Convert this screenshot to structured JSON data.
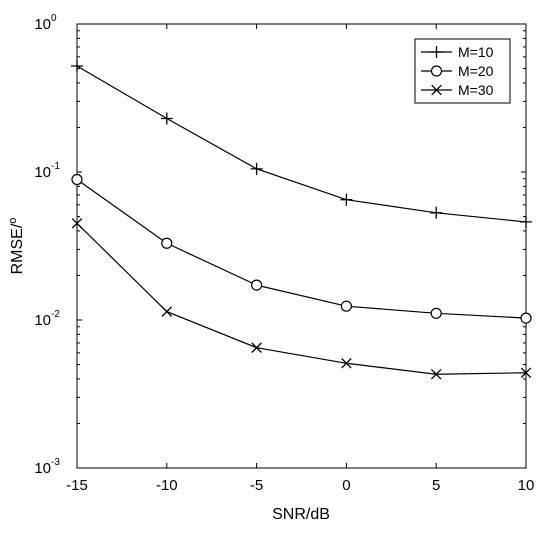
{
  "chart_data": {
    "type": "line",
    "xlabel": "SNR/dB",
    "ylabel": "RMSE/°",
    "ylabel_base": "RMSE/",
    "ylabel_superscript": "o",
    "x_scale": "linear",
    "y_scale": "log",
    "xlim": [
      -15,
      10
    ],
    "ylim": [
      0.001,
      1
    ],
    "x_ticks": [
      -15,
      -10,
      -5,
      0,
      5,
      10
    ],
    "x_tick_labels": [
      "-15",
      "-10",
      "-5",
      "0",
      "5",
      "10"
    ],
    "y_ticks": [
      {
        "value": 0.001,
        "base": "10",
        "exp": "-3"
      },
      {
        "value": 0.01,
        "base": "10",
        "exp": "-2"
      },
      {
        "value": 0.1,
        "base": "10",
        "exp": "-1"
      },
      {
        "value": 1,
        "base": "10",
        "exp": "0"
      }
    ],
    "grid": false,
    "legend_position": "top-right",
    "x": [
      -15,
      -10,
      -5,
      0,
      5,
      10
    ],
    "series": [
      {
        "name": "M=10",
        "marker": "plus",
        "values": [
          0.52,
          0.23,
          0.105,
          0.065,
          0.053,
          0.046
        ]
      },
      {
        "name": "M=20",
        "marker": "circle",
        "values": [
          0.089,
          0.033,
          0.0172,
          0.0124,
          0.0111,
          0.0103
        ]
      },
      {
        "name": "M=30",
        "marker": "x",
        "values": [
          0.045,
          0.0114,
          0.0065,
          0.0051,
          0.0043,
          0.0044
        ]
      }
    ],
    "colors": {
      "line": "#000000",
      "background": "#ffffff"
    }
  }
}
